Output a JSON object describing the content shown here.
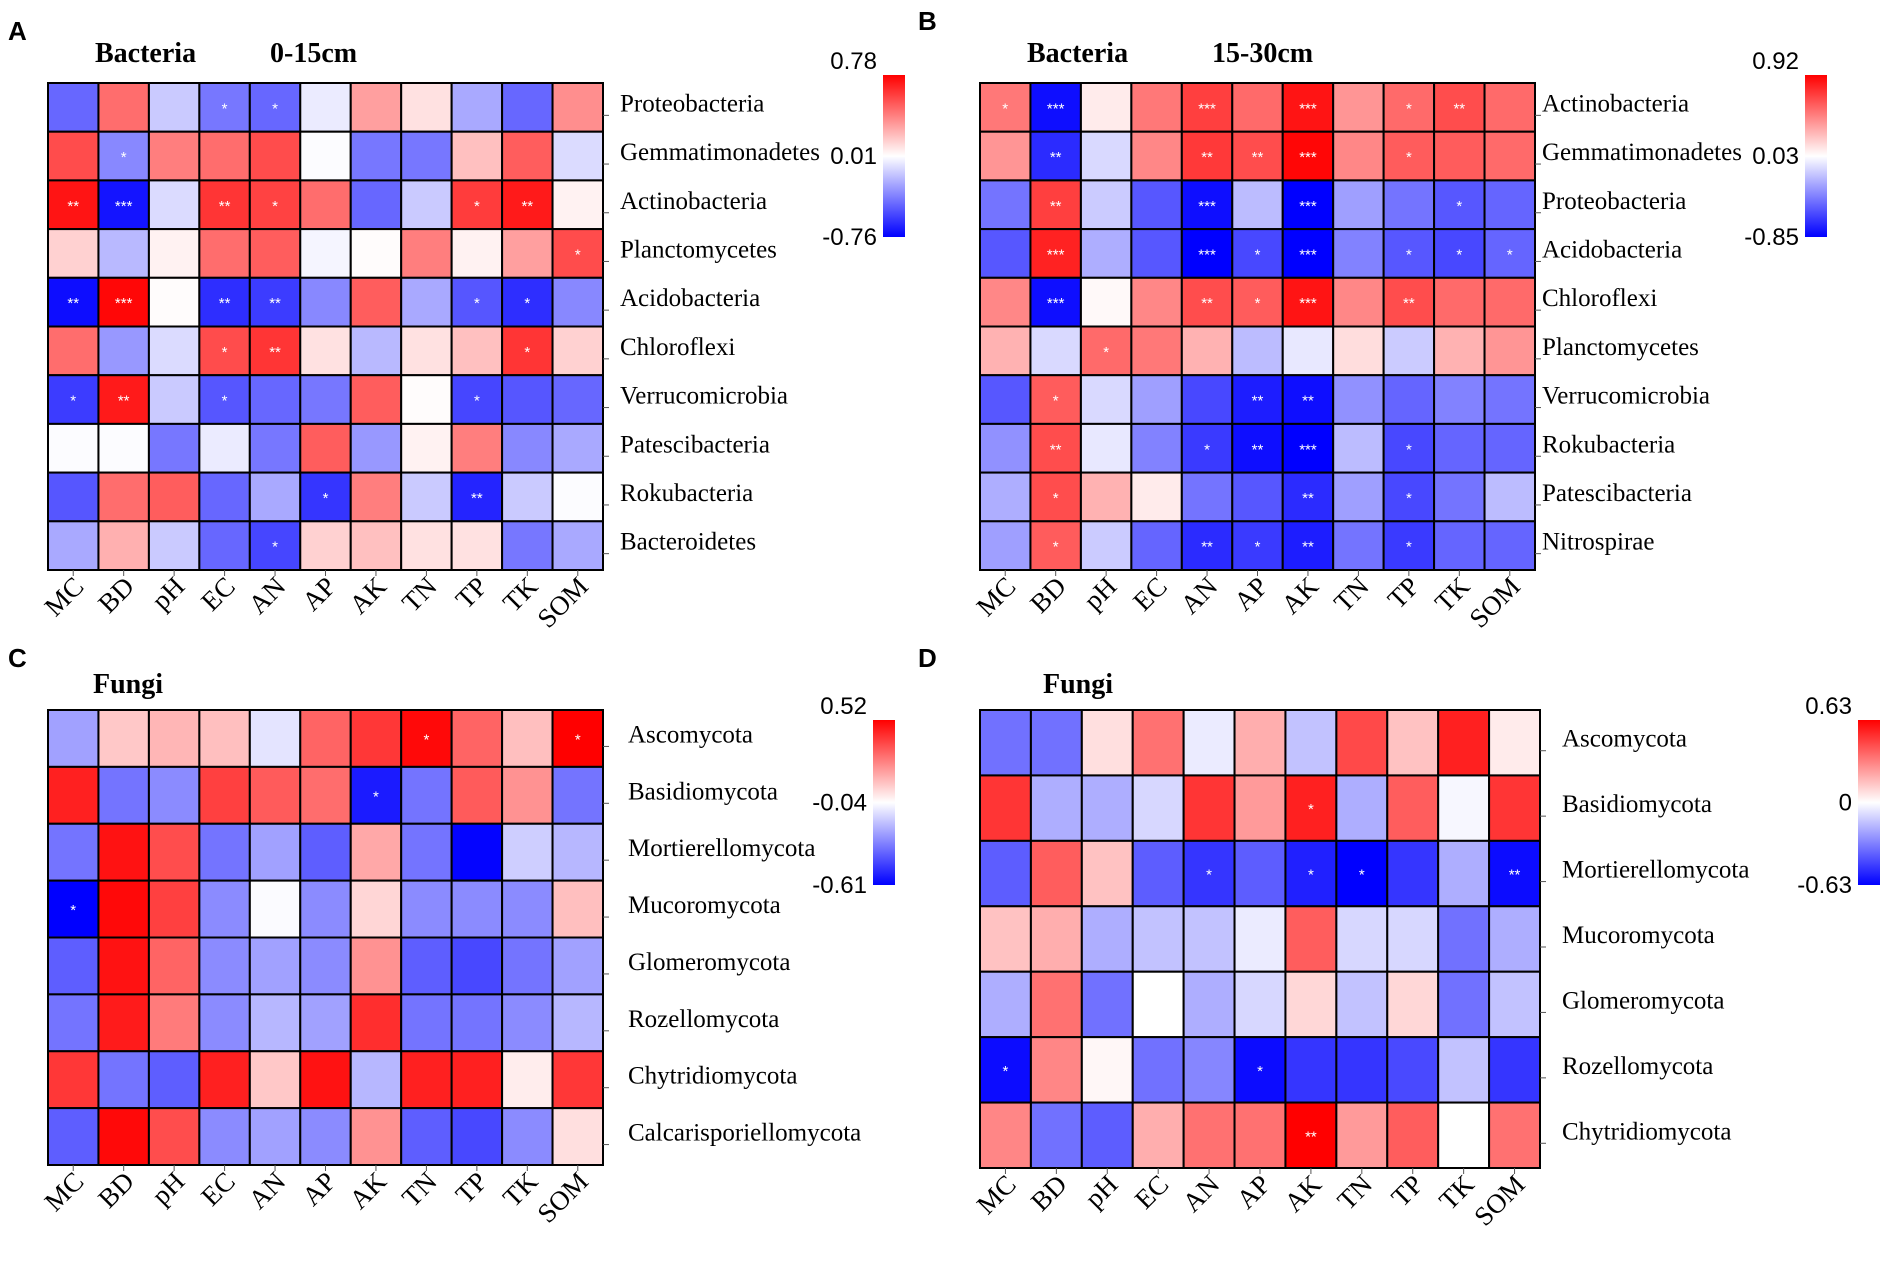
{
  "figure": {
    "colors": {
      "negative": "#0000ff",
      "neutral": "#ffffff",
      "positive": "#ff0000",
      "grid": "#000000"
    }
  },
  "chart_data": [
    {
      "type": "heatmap",
      "panel": "A",
      "title": "Bacteria",
      "subtitle": "0-15cm",
      "x": [
        "MC",
        "BD",
        "pH",
        "EC",
        "AN",
        "AP",
        "AK",
        "TN",
        "TP",
        "TK",
        "SOM"
      ],
      "y": [
        "Proteobacteria",
        "Gemmatimonadetes",
        "Actinobacteria",
        "Planctomycetes",
        "Acidobacteria",
        "Chloroflexi",
        "Verrucomicrobia",
        "Patescibacteria",
        "Rokubacteria",
        "Bacteroidetes"
      ],
      "colorbar": {
        "min": -0.76,
        "mid": 0.01,
        "max": 0.78,
        "labels": [
          "0.78",
          "0.01",
          "-0.76"
        ]
      },
      "values": [
        [
          -0.45,
          0.45,
          -0.15,
          -0.4,
          -0.45,
          -0.05,
          0.3,
          0.1,
          -0.25,
          -0.45,
          0.35
        ],
        [
          0.55,
          -0.35,
          0.4,
          0.45,
          0.55,
          0.0,
          -0.4,
          -0.4,
          0.2,
          0.5,
          -0.1
        ],
        [
          0.72,
          -0.7,
          -0.1,
          0.62,
          0.58,
          0.45,
          -0.45,
          -0.15,
          0.6,
          0.7,
          0.05
        ],
        [
          0.15,
          -0.2,
          0.05,
          0.45,
          0.5,
          -0.02,
          0.02,
          0.4,
          0.05,
          0.3,
          0.55
        ],
        [
          -0.72,
          0.76,
          0.02,
          -0.62,
          -0.58,
          -0.35,
          0.5,
          -0.25,
          -0.5,
          -0.62,
          -0.35
        ],
        [
          0.45,
          -0.3,
          -0.1,
          0.55,
          0.62,
          0.1,
          -0.2,
          0.1,
          0.2,
          0.62,
          0.15
        ],
        [
          -0.58,
          0.7,
          -0.15,
          -0.5,
          -0.45,
          -0.4,
          0.5,
          0.02,
          -0.55,
          -0.5,
          -0.45
        ],
        [
          0.0,
          0.0,
          -0.4,
          -0.05,
          -0.4,
          0.5,
          -0.3,
          0.05,
          0.4,
          -0.35,
          -0.25
        ],
        [
          -0.5,
          0.45,
          0.5,
          -0.45,
          -0.25,
          -0.6,
          0.4,
          -0.15,
          -0.65,
          -0.15,
          0.0
        ],
        [
          -0.25,
          0.25,
          -0.15,
          -0.45,
          -0.55,
          0.15,
          0.2,
          0.1,
          0.1,
          -0.4,
          -0.25
        ]
      ],
      "significance": [
        [
          "",
          "",
          "",
          "*",
          "*",
          "",
          "",
          "",
          "",
          "",
          ""
        ],
        [
          "",
          "*",
          "",
          "",
          "",
          "",
          "",
          "",
          "",
          "",
          ""
        ],
        [
          "**",
          "***",
          "",
          "**",
          "*",
          "",
          "",
          "",
          "*",
          "**",
          ""
        ],
        [
          "",
          "",
          "",
          "",
          "",
          "",
          "",
          "",
          "",
          "",
          "*"
        ],
        [
          "**",
          "***",
          "",
          "**",
          "**",
          "",
          "",
          "",
          "*",
          "*",
          ""
        ],
        [
          "",
          "",
          "",
          "*",
          "**",
          "",
          "",
          "",
          "",
          "*",
          ""
        ],
        [
          "*",
          "**",
          "",
          "*",
          "",
          "",
          "",
          "",
          "*",
          "",
          ""
        ],
        [
          "",
          "",
          "",
          "",
          "",
          "",
          "",
          "",
          "",
          "",
          ""
        ],
        [
          "",
          "",
          "",
          "",
          "",
          "*",
          "",
          "",
          "**",
          "",
          ""
        ],
        [
          "",
          "",
          "",
          "",
          "*",
          "",
          "",
          "",
          "",
          "",
          ""
        ]
      ]
    },
    {
      "type": "heatmap",
      "panel": "B",
      "title": "Bacteria",
      "subtitle": "15-30cm",
      "x": [
        "MC",
        "BD",
        "pH",
        "EC",
        "AN",
        "AP",
        "AK",
        "TN",
        "TP",
        "TK",
        "SOM"
      ],
      "y": [
        "Actinobacteria",
        "Gemmatimonadetes",
        "Proteobacteria",
        "Acidobacteria",
        "Chloroflexi",
        "Planctomycetes",
        "Verrucomicrobia",
        "Rokubacteria",
        "Patescibacteria",
        "Nitrospirae"
      ],
      "colorbar": {
        "min": -0.85,
        "mid": 0.03,
        "max": 0.92,
        "labels": [
          "0.92",
          "0.03",
          "-0.85"
        ]
      },
      "values": [
        [
          0.5,
          -0.8,
          0.1,
          0.5,
          0.7,
          0.55,
          0.85,
          0.4,
          0.55,
          0.65,
          0.55
        ],
        [
          0.4,
          -0.7,
          -0.1,
          0.45,
          0.72,
          0.65,
          0.9,
          0.45,
          0.6,
          0.6,
          0.55
        ],
        [
          -0.45,
          0.7,
          -0.15,
          -0.55,
          -0.8,
          -0.2,
          -0.85,
          -0.3,
          -0.45,
          -0.55,
          -0.5
        ],
        [
          -0.55,
          0.8,
          -0.25,
          -0.55,
          -0.85,
          -0.6,
          -0.85,
          -0.4,
          -0.55,
          -0.6,
          -0.5
        ],
        [
          0.45,
          -0.8,
          0.05,
          0.45,
          0.65,
          0.6,
          0.85,
          0.45,
          0.65,
          0.55,
          0.55
        ],
        [
          0.3,
          -0.1,
          0.55,
          0.5,
          0.3,
          -0.2,
          -0.05,
          0.15,
          -0.15,
          0.3,
          0.4
        ],
        [
          -0.55,
          0.6,
          -0.1,
          -0.3,
          -0.6,
          -0.75,
          -0.8,
          -0.35,
          -0.5,
          -0.4,
          -0.45
        ],
        [
          -0.35,
          0.65,
          -0.05,
          -0.4,
          -0.65,
          -0.8,
          -0.85,
          -0.2,
          -0.6,
          -0.5,
          -0.5
        ],
        [
          -0.25,
          0.65,
          0.3,
          0.1,
          -0.45,
          -0.55,
          -0.7,
          -0.3,
          -0.6,
          -0.45,
          -0.2
        ],
        [
          -0.3,
          0.6,
          -0.15,
          -0.5,
          -0.7,
          -0.65,
          -0.75,
          -0.45,
          -0.65,
          -0.5,
          -0.5
        ]
      ],
      "significance": [
        [
          "*",
          "***",
          "",
          "",
          "***",
          "",
          "***",
          "",
          "*",
          "**",
          ""
        ],
        [
          "",
          "**",
          "",
          "",
          "**",
          "**",
          "***",
          "",
          "*",
          "",
          ""
        ],
        [
          "",
          "**",
          "",
          "",
          "***",
          "",
          "***",
          "",
          "",
          "*",
          ""
        ],
        [
          "",
          "***",
          "",
          "",
          "***",
          "*",
          "***",
          "",
          "*",
          "*",
          "*"
        ],
        [
          "",
          "***",
          "",
          "",
          "**",
          "*",
          "***",
          "",
          "**",
          "",
          ""
        ],
        [
          "",
          "",
          "*",
          "",
          "",
          "",
          "",
          "",
          "",
          "",
          ""
        ],
        [
          "",
          "*",
          "",
          "",
          "",
          "**",
          "**",
          "",
          "",
          "",
          ""
        ],
        [
          "",
          "**",
          "",
          "",
          "*",
          "**",
          "***",
          "",
          "*",
          "",
          ""
        ],
        [
          "",
          "*",
          "",
          "",
          "",
          "",
          "**",
          "",
          "*",
          "",
          ""
        ],
        [
          "",
          "*",
          "",
          "",
          "**",
          "*",
          "**",
          "",
          "*",
          "",
          ""
        ]
      ]
    },
    {
      "type": "heatmap",
      "panel": "C",
      "title": "Fungi",
      "subtitle": "",
      "x": [
        "MC",
        "BD",
        "pH",
        "EC",
        "AN",
        "AP",
        "AK",
        "TN",
        "TP",
        "TK",
        "SOM"
      ],
      "y": [
        "Ascomycota",
        "Basidiomycota",
        "Mortierellomycota",
        "Mucoromycota",
        "Glomeromycota",
        "Rozellomycota",
        "Chytridiomycota",
        "Calcarisporiellomycota"
      ],
      "colorbar": {
        "min": -0.61,
        "mid": -0.04,
        "max": 0.52,
        "labels": [
          "0.52",
          "-0.04",
          "-0.61"
        ]
      },
      "values": [
        [
          -0.25,
          0.08,
          0.12,
          0.1,
          -0.1,
          0.3,
          0.4,
          0.5,
          0.3,
          0.1,
          0.52
        ],
        [
          0.45,
          -0.35,
          -0.3,
          0.38,
          0.32,
          0.28,
          -0.55,
          -0.35,
          0.32,
          0.2,
          -0.35
        ],
        [
          -0.35,
          0.48,
          0.35,
          -0.35,
          -0.25,
          -0.4,
          0.15,
          -0.35,
          -0.6,
          -0.15,
          -0.2
        ],
        [
          -0.61,
          0.5,
          0.38,
          -0.3,
          -0.05,
          -0.3,
          0.05,
          -0.3,
          -0.3,
          -0.3,
          0.1
        ],
        [
          -0.4,
          0.48,
          0.3,
          -0.3,
          -0.25,
          -0.3,
          0.2,
          -0.4,
          -0.45,
          -0.35,
          -0.25
        ],
        [
          -0.35,
          0.46,
          0.25,
          -0.3,
          -0.2,
          -0.25,
          0.42,
          -0.35,
          -0.35,
          -0.3,
          -0.2
        ],
        [
          0.4,
          -0.35,
          -0.4,
          0.45,
          0.08,
          0.48,
          -0.2,
          0.45,
          0.45,
          0.0,
          0.4
        ],
        [
          -0.4,
          0.5,
          0.35,
          -0.3,
          -0.25,
          -0.3,
          0.2,
          -0.4,
          -0.45,
          -0.3,
          0.03
        ]
      ],
      "significance": [
        [
          "",
          "",
          "",
          "",
          "",
          "",
          "",
          "*",
          "",
          "",
          "*"
        ],
        [
          "",
          "",
          "",
          "",
          "",
          "",
          "*",
          "",
          "",
          "",
          ""
        ],
        [
          "",
          "",
          "",
          "",
          "",
          "",
          "",
          "",
          "",
          "",
          ""
        ],
        [
          "*",
          "",
          "",
          "",
          "",
          "",
          "",
          "",
          "",
          "",
          ""
        ],
        [
          "",
          "",
          "",
          "",
          "",
          "",
          "",
          "",
          "",
          "",
          ""
        ],
        [
          "",
          "",
          "",
          "",
          "",
          "",
          "",
          "",
          "",
          "",
          ""
        ],
        [
          "",
          "",
          "",
          "",
          "",
          "",
          "",
          "",
          "",
          "",
          ""
        ],
        [
          "",
          "",
          "",
          "",
          "",
          "",
          "",
          "",
          "",
          "",
          ""
        ]
      ]
    },
    {
      "type": "heatmap",
      "panel": "D",
      "title": "Fungi",
      "subtitle": "",
      "x": [
        "MC",
        "BD",
        "pH",
        "EC",
        "AN",
        "AP",
        "AK",
        "TN",
        "TP",
        "TK",
        "SOM"
      ],
      "y": [
        "Ascomycota",
        "Basidiomycota",
        "Mortierellomycota",
        "Mucoromycota",
        "Glomeromycota",
        "Rozellomycota",
        "Chytridiomycota"
      ],
      "colorbar": {
        "min": -0.63,
        "mid": 0,
        "max": 0.63,
        "labels": [
          "0.63",
          "0",
          "-0.63"
        ]
      },
      "values": [
        [
          -0.35,
          -0.35,
          0.08,
          0.35,
          -0.05,
          0.2,
          -0.15,
          0.45,
          0.15,
          0.55,
          0.05
        ],
        [
          0.5,
          -0.2,
          -0.2,
          -0.1,
          0.5,
          0.25,
          0.55,
          -0.2,
          0.4,
          -0.02,
          0.5
        ],
        [
          -0.4,
          0.4,
          0.15,
          -0.4,
          -0.5,
          -0.4,
          -0.55,
          -0.63,
          -0.5,
          -0.2,
          -0.6
        ],
        [
          0.15,
          0.2,
          -0.2,
          -0.15,
          -0.15,
          -0.05,
          0.4,
          -0.1,
          -0.1,
          -0.35,
          -0.2
        ],
        [
          -0.2,
          0.35,
          -0.35,
          0.0,
          -0.2,
          -0.1,
          0.1,
          -0.15,
          0.1,
          -0.35,
          -0.15
        ],
        [
          -0.6,
          0.3,
          0.02,
          -0.35,
          -0.3,
          -0.6,
          -0.5,
          -0.5,
          -0.45,
          -0.15,
          -0.5
        ],
        [
          0.3,
          -0.35,
          -0.4,
          0.2,
          0.35,
          0.35,
          0.63,
          0.25,
          0.4,
          0.0,
          0.35
        ]
      ],
      "significance": [
        [
          "",
          "",
          "",
          "",
          "",
          "",
          "",
          "",
          "",
          "",
          ""
        ],
        [
          "",
          "",
          "",
          "",
          "",
          "",
          "*",
          "",
          "",
          "",
          ""
        ],
        [
          "",
          "",
          "",
          "",
          "*",
          "",
          "*",
          "*",
          "",
          "",
          "**"
        ],
        [
          "",
          "",
          "",
          "",
          "",
          "",
          "",
          "",
          "",
          "",
          ""
        ],
        [
          "",
          "",
          "",
          "",
          "",
          "",
          "",
          "",
          "",
          "",
          ""
        ],
        [
          "*",
          "",
          "",
          "",
          "",
          "*",
          "",
          "",
          "",
          "",
          ""
        ],
        [
          "",
          "",
          "",
          "",
          "",
          "",
          "**",
          "",
          "",
          "",
          ""
        ]
      ]
    }
  ]
}
